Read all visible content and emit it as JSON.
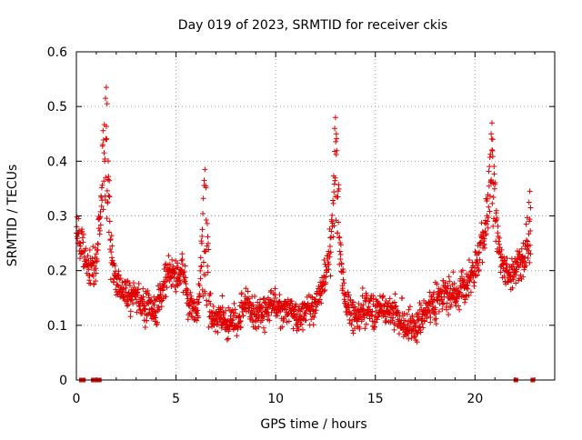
{
  "chart_data": {
    "type": "scatter",
    "title": "Day 019 of 2023, SRMTID for receiver ckis",
    "xlabel": "GPS time / hours",
    "ylabel": "SRMTID / TECUs",
    "xlim": [
      0,
      24
    ],
    "ylim": [
      0,
      0.6
    ],
    "x_ticks": [
      0,
      5,
      10,
      15,
      20
    ],
    "x_tick_labels": [
      "0",
      "5",
      "10",
      "15",
      "20"
    ],
    "y_ticks": [
      0,
      0.1,
      0.2,
      0.3,
      0.4,
      0.5,
      0.6
    ],
    "y_tick_labels": [
      "0",
      "0.1",
      "0.2",
      "0.3",
      "0.4",
      "0.5",
      "0.6"
    ],
    "grid": true,
    "marker": "plus",
    "color": "#e00000",
    "series": [
      {
        "name": "SRMTID",
        "trend": [
          [
            0.0,
            0.28
          ],
          [
            0.3,
            0.24
          ],
          [
            0.6,
            0.2
          ],
          [
            0.9,
            0.2
          ],
          [
            1.1,
            0.26
          ],
          [
            1.3,
            0.33
          ],
          [
            1.5,
            0.3
          ],
          [
            1.7,
            0.21
          ],
          [
            2.0,
            0.18
          ],
          [
            2.5,
            0.16
          ],
          [
            3.0,
            0.15
          ],
          [
            3.5,
            0.14
          ],
          [
            4.0,
            0.12
          ],
          [
            4.3,
            0.17
          ],
          [
            4.7,
            0.2
          ],
          [
            5.0,
            0.19
          ],
          [
            5.3,
            0.21
          ],
          [
            5.6,
            0.14
          ],
          [
            6.0,
            0.12
          ],
          [
            6.4,
            0.15
          ],
          [
            6.8,
            0.11
          ],
          [
            7.2,
            0.12
          ],
          [
            7.6,
            0.1
          ],
          [
            8.0,
            0.11
          ],
          [
            8.5,
            0.14
          ],
          [
            9.0,
            0.12
          ],
          [
            9.5,
            0.13
          ],
          [
            10.0,
            0.14
          ],
          [
            10.5,
            0.13
          ],
          [
            11.0,
            0.12
          ],
          [
            11.5,
            0.12
          ],
          [
            12.0,
            0.14
          ],
          [
            12.4,
            0.18
          ],
          [
            12.7,
            0.22
          ],
          [
            13.0,
            0.27
          ],
          [
            13.3,
            0.19
          ],
          [
            13.6,
            0.13
          ],
          [
            14.0,
            0.12
          ],
          [
            14.5,
            0.13
          ],
          [
            15.0,
            0.12
          ],
          [
            15.5,
            0.13
          ],
          [
            16.0,
            0.12
          ],
          [
            16.5,
            0.1
          ],
          [
            17.0,
            0.1
          ],
          [
            17.5,
            0.12
          ],
          [
            18.0,
            0.14
          ],
          [
            18.5,
            0.16
          ],
          [
            19.0,
            0.16
          ],
          [
            19.5,
            0.17
          ],
          [
            20.0,
            0.2
          ],
          [
            20.4,
            0.26
          ],
          [
            20.7,
            0.3
          ],
          [
            21.0,
            0.28
          ],
          [
            21.3,
            0.22
          ],
          [
            21.7,
            0.19
          ],
          [
            22.0,
            0.2
          ],
          [
            22.4,
            0.22
          ],
          [
            22.8,
            0.2
          ]
        ],
        "peaks": [
          {
            "x": 1.5,
            "y": 0.535
          },
          {
            "x": 6.45,
            "y": 0.385
          },
          {
            "x": 13.0,
            "y": 0.48
          },
          {
            "x": 20.85,
            "y": 0.47
          },
          {
            "x": 22.75,
            "y": 0.345
          }
        ],
        "near_zero_points_x": [
          0.25,
          0.35,
          0.85,
          1.0,
          1.15,
          22.05,
          22.9
        ]
      }
    ]
  }
}
